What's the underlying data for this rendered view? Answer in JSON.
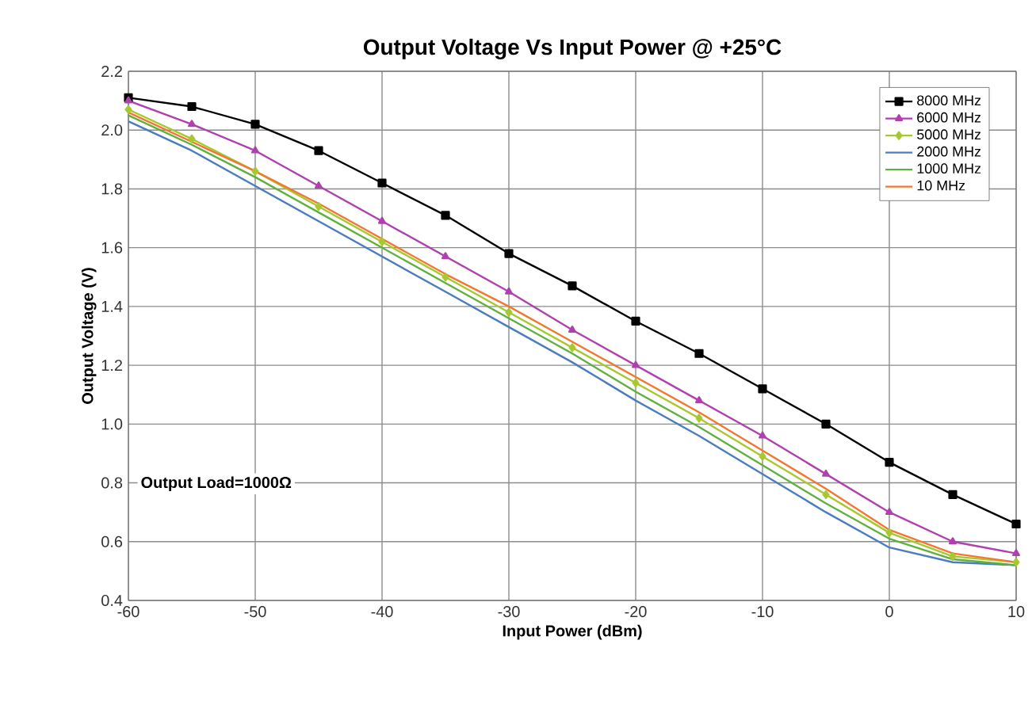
{
  "chart_data": {
    "type": "line",
    "title": "Output Voltage Vs Input Power @ +25°C",
    "xlabel": "Input Power (dBm)",
    "ylabel": "Output Voltage (V)",
    "x": [
      -60,
      -55,
      -50,
      -45,
      -40,
      -35,
      -30,
      -25,
      -20,
      -15,
      -10,
      -5,
      0,
      5,
      10
    ],
    "series": [
      {
        "name": "8000 MHz",
        "color": "#000000",
        "marker": "square",
        "values": [
          2.11,
          2.08,
          2.02,
          1.93,
          1.82,
          1.71,
          1.58,
          1.47,
          1.35,
          1.24,
          1.12,
          1.0,
          0.87,
          0.76,
          0.66
        ]
      },
      {
        "name": "6000 MHz",
        "color": "#b040b0",
        "marker": "triangle",
        "values": [
          2.1,
          2.02,
          1.93,
          1.81,
          1.69,
          1.57,
          1.45,
          1.32,
          1.2,
          1.08,
          0.96,
          0.83,
          0.7,
          0.6,
          0.56
        ]
      },
      {
        "name": "5000 MHz",
        "color": "#a8c830",
        "marker": "diamond",
        "values": [
          2.07,
          1.97,
          1.86,
          1.74,
          1.62,
          1.5,
          1.38,
          1.26,
          1.14,
          1.02,
          0.89,
          0.76,
          0.63,
          0.55,
          0.53
        ]
      },
      {
        "name": "2000 MHz",
        "color": "#4a7cc0",
        "values": [
          2.03,
          1.93,
          1.81,
          1.69,
          1.57,
          1.45,
          1.33,
          1.21,
          1.08,
          0.96,
          0.83,
          0.7,
          0.58,
          0.53,
          0.52
        ]
      },
      {
        "name": "1000 MHz",
        "color": "#60b040",
        "values": [
          2.05,
          1.95,
          1.84,
          1.72,
          1.6,
          1.48,
          1.36,
          1.24,
          1.11,
          0.99,
          0.86,
          0.73,
          0.61,
          0.54,
          0.52
        ]
      },
      {
        "name": "10 MHz",
        "color": "#f07830",
        "values": [
          2.06,
          1.96,
          1.86,
          1.75,
          1.63,
          1.51,
          1.4,
          1.28,
          1.16,
          1.04,
          0.91,
          0.78,
          0.64,
          0.56,
          0.53
        ]
      }
    ],
    "xlim": [
      -60,
      10
    ],
    "ylim": [
      0.4,
      2.2
    ],
    "xticks": [
      -60,
      -50,
      -40,
      -30,
      -20,
      -10,
      0,
      10
    ],
    "yticks": [
      0.4,
      0.6,
      0.8,
      {
        "value": 1.0,
        "label": "1.0"
      },
      1.2,
      1.4,
      1.6,
      1.8,
      {
        "value": 2.0,
        "label": "2.0"
      },
      2.2
    ],
    "annotations": [
      "Output Load=1000Ω"
    ],
    "grid": true,
    "legend": "top right"
  }
}
